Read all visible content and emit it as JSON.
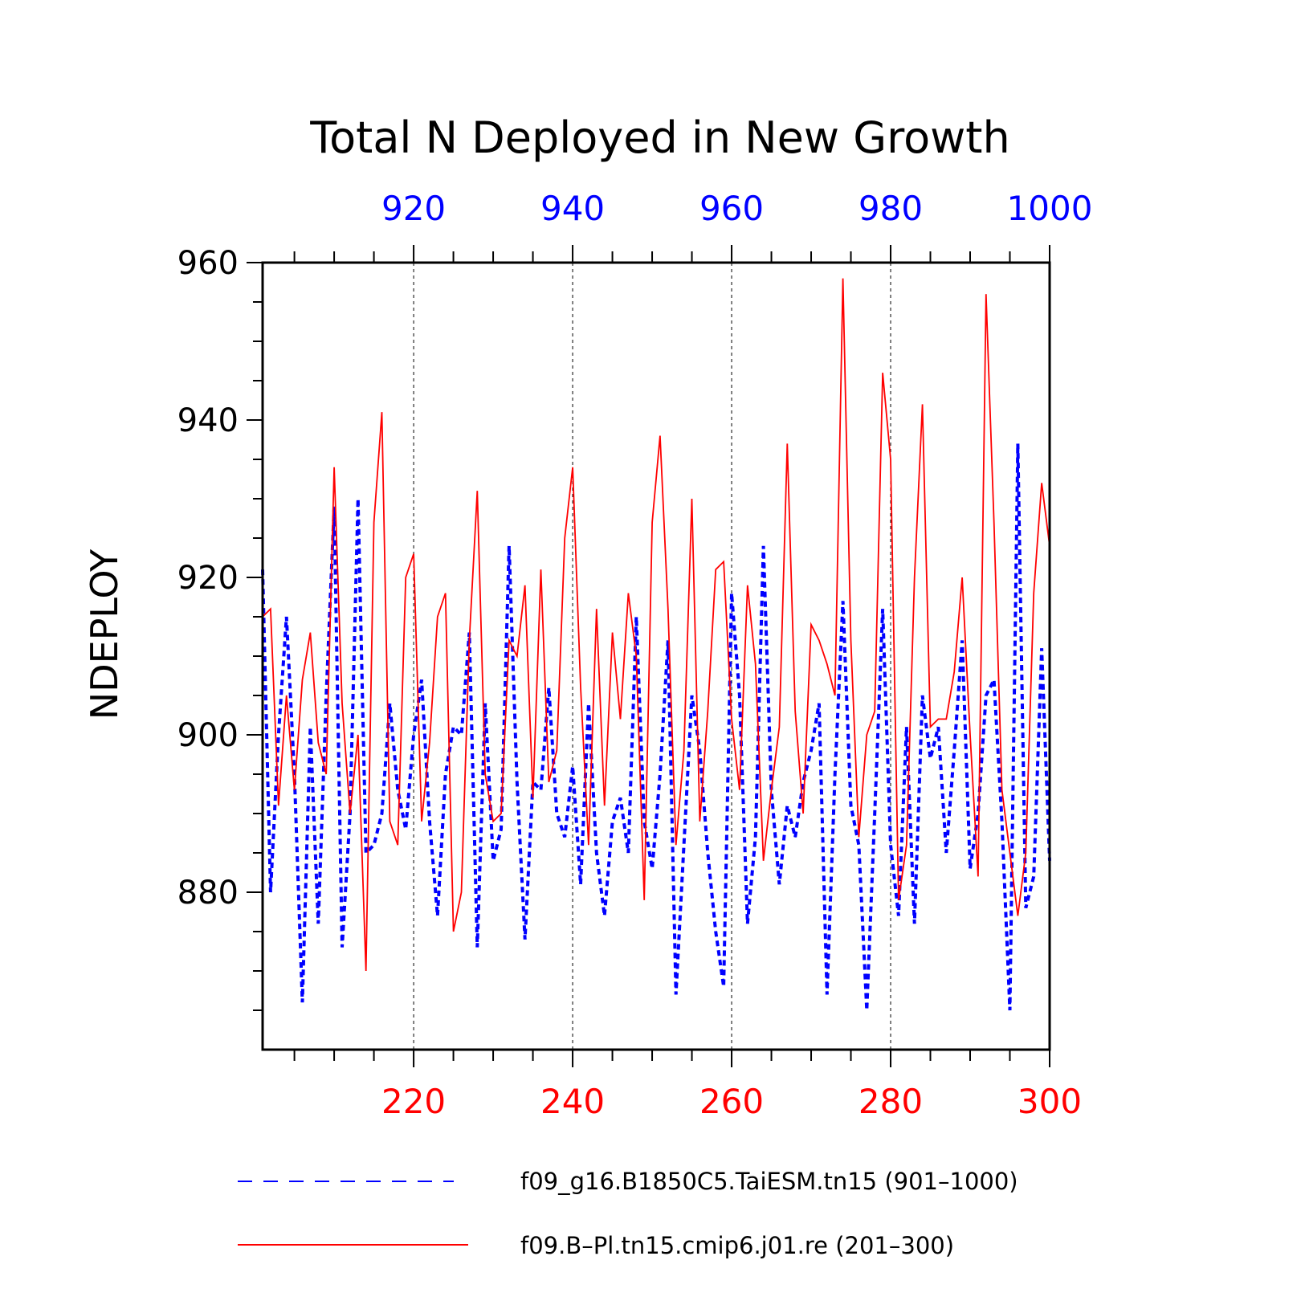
{
  "chart_data": {
    "type": "line",
    "title": "Total N Deployed in New Growth",
    "ylabel": "NDEPLOY",
    "ylim": [
      860,
      960
    ],
    "yticks": [
      880,
      900,
      920,
      940,
      960
    ],
    "grid": "vertical dashed lines at labeled x ticks",
    "legend_placement": "bottom",
    "series": [
      {
        "name": "f09_g16.B1850C5.TaiESM.tn15 (901–1000)",
        "color": "#0000ff",
        "style": "dashed",
        "axis": "top",
        "x_start": 901,
        "xlim": [
          901,
          1000
        ],
        "xticks": [
          920,
          940,
          960,
          980,
          1000
        ],
        "values": [
          921,
          880,
          900,
          915,
          895,
          866,
          901,
          876,
          905,
          929,
          873,
          890,
          930,
          885,
          886,
          890,
          904,
          893,
          888,
          900,
          907,
          889,
          877,
          895,
          901,
          900,
          913,
          873,
          904,
          884,
          888,
          924,
          894,
          874,
          894,
          893,
          906,
          890,
          887,
          896,
          881,
          904,
          885,
          877,
          889,
          892,
          885,
          915,
          889,
          883,
          895,
          912,
          867,
          886,
          905,
          898,
          885,
          875,
          868,
          918,
          905,
          876,
          887,
          924,
          893,
          881,
          891,
          887,
          894,
          898,
          904,
          867,
          895,
          917,
          891,
          886,
          865,
          890,
          916,
          886,
          877,
          901,
          876,
          905,
          897,
          901,
          885,
          898,
          912,
          883,
          890,
          905,
          907,
          889,
          865,
          937,
          878,
          882,
          911,
          884
        ]
      },
      {
        "name": "f09.B–Pl.tn15.cmip6.j01.re (201–300)",
        "color": "#ff0000",
        "style": "solid",
        "axis": "bottom",
        "x_start": 201,
        "xlim": [
          201,
          300
        ],
        "xticks": [
          220,
          240,
          260,
          280,
          300
        ],
        "values": [
          915,
          916,
          891,
          905,
          893,
          907,
          913,
          899,
          895,
          934,
          904,
          890,
          900,
          870,
          927,
          941,
          889,
          886,
          920,
          923,
          889,
          899,
          915,
          918,
          875,
          880,
          912,
          931,
          895,
          889,
          890,
          912,
          910,
          919,
          892,
          921,
          894,
          898,
          925,
          934,
          906,
          886,
          916,
          891,
          913,
          902,
          918,
          910,
          879,
          927,
          938,
          916,
          886,
          898,
          930,
          889,
          903,
          921,
          922,
          902,
          893,
          919,
          909,
          884,
          893,
          901,
          937,
          903,
          890,
          914,
          912,
          909,
          905,
          958,
          912,
          887,
          900,
          903,
          946,
          935,
          879,
          886,
          920,
          942,
          901,
          902,
          902,
          908,
          920,
          900,
          882,
          956,
          927,
          893,
          885,
          877,
          885,
          918,
          932,
          924
        ]
      }
    ]
  }
}
